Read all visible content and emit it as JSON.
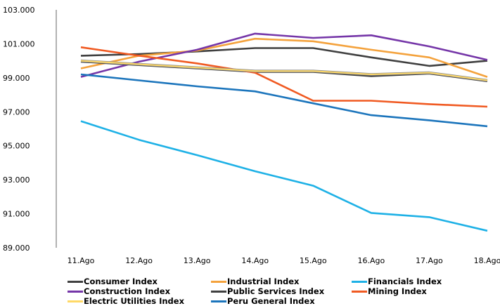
{
  "chart_data": {
    "type": "line",
    "title": "",
    "xlabel": "",
    "ylabel": "",
    "ylim": [
      89,
      103
    ],
    "yticks": [
      "89.000",
      "91.000",
      "93.000",
      "95.000",
      "97.000",
      "99.000",
      "101.000",
      "103.000"
    ],
    "ytick_values": [
      89,
      91,
      93,
      95,
      97,
      99,
      101,
      103
    ],
    "categories": [
      "11.Ago",
      "12.Ago",
      "13.Ago",
      "14.Ago",
      "15.Ago",
      "16.Ago",
      "17.Ago",
      "18.Ago"
    ],
    "grid": false,
    "legend_position": "bottom",
    "series": [
      {
        "name": "Consumer Index",
        "color": "#404040",
        "values": [
          100.3,
          100.4,
          100.55,
          100.75,
          100.75,
          100.2,
          99.7,
          100.0
        ]
      },
      {
        "name": "Industrial Index",
        "color": "#F4A23C",
        "values": [
          99.55,
          100.3,
          100.6,
          101.3,
          101.15,
          100.65,
          100.2,
          99.05
        ]
      },
      {
        "name": "Financials Index",
        "color": "#1EB1E6",
        "values": [
          96.45,
          95.35,
          94.45,
          93.5,
          92.65,
          91.05,
          90.8,
          90.0
        ]
      },
      {
        "name": "Construction Index",
        "color": "#7536A8",
        "values": [
          99.05,
          99.95,
          100.65,
          101.6,
          101.35,
          101.5,
          100.85,
          100.05
        ]
      },
      {
        "name": "Public Services Index",
        "color": "#404040",
        "values": [
          99.95,
          99.75,
          99.55,
          99.35,
          99.35,
          99.1,
          99.25,
          98.8
        ]
      },
      {
        "name": "Mining Index",
        "color": "#F05A22",
        "values": [
          100.8,
          100.3,
          99.85,
          99.3,
          97.65,
          97.65,
          97.45,
          97.3
        ]
      },
      {
        "name": "Electric Utilities Index",
        "color": "#FFD966",
        "values": [
          100.0,
          99.8,
          99.6,
          99.4,
          99.4,
          99.2,
          99.3,
          98.85
        ]
      },
      {
        "name": "Peru General Index",
        "color": "#1C75BC",
        "values": [
          99.2,
          98.85,
          98.5,
          98.2,
          97.5,
          96.8,
          96.5,
          96.15
        ]
      }
    ]
  }
}
